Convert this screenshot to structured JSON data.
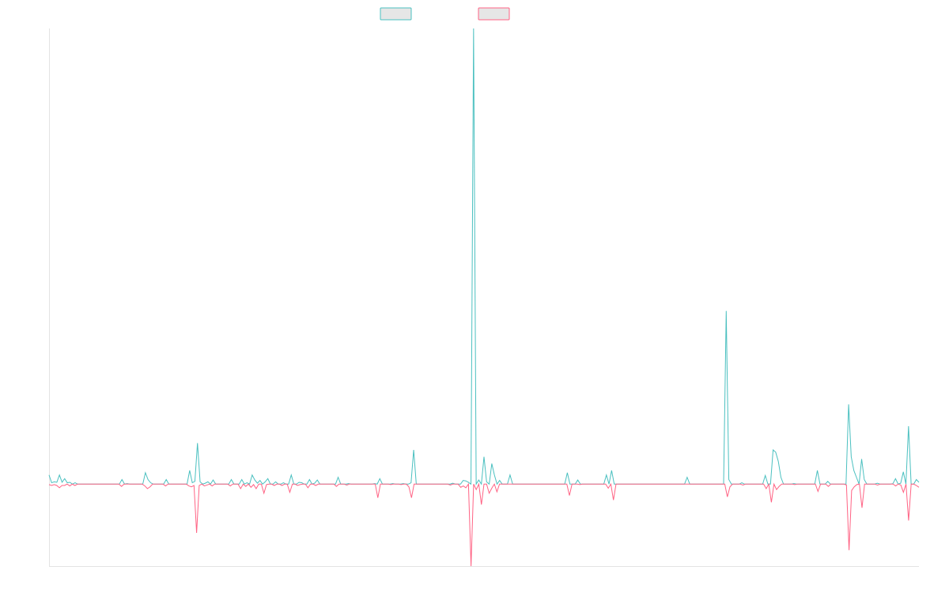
{
  "chart_data": {
    "type": "line",
    "title": "",
    "xlabel": "",
    "ylabel": "",
    "ylim": [
      -0.18,
      1.0
    ],
    "legend": {
      "placement": "top-center"
    },
    "grid": false,
    "series": [
      {
        "color": "#4bc0c0",
        "values": [
          0.02,
          0.003,
          0.005,
          0.004,
          0.02,
          0.004,
          0.012,
          0.003,
          0.004,
          0,
          0.003,
          0,
          0,
          0,
          0,
          0,
          0,
          0,
          0,
          0,
          0,
          0,
          0,
          0,
          0,
          0,
          0,
          0,
          0.01,
          0,
          0.001,
          0,
          0,
          0,
          0,
          0,
          0,
          0.025,
          0.01,
          0.003,
          0,
          0,
          0,
          0,
          0,
          0.01,
          0,
          0,
          0,
          0,
          0,
          0,
          0,
          0,
          0.03,
          0.003,
          0.006,
          0.09,
          0.005,
          0,
          0.002,
          0.005,
          0,
          0.009,
          0,
          0,
          0,
          0,
          0,
          0,
          0.01,
          0,
          0,
          0,
          0.01,
          0,
          0.003,
          0,
          0.02,
          0.009,
          0.002,
          0.008,
          0,
          0.005,
          0.012,
          0,
          0,
          0.005,
          0,
          0,
          0.003,
          0,
          0,
          0.02,
          0,
          0,
          0.004,
          0.003,
          0,
          0,
          0.01,
          0,
          0.002,
          0.009,
          0,
          0,
          0,
          0,
          0,
          0,
          0,
          0.015,
          0,
          0,
          0,
          0.001,
          0,
          0,
          0,
          0,
          0,
          0,
          0,
          0,
          0,
          0.001,
          0,
          0.012,
          0,
          0,
          0,
          0,
          0.001,
          0,
          0,
          0,
          0.001,
          0,
          0,
          0.003,
          0.075,
          0,
          0,
          0,
          0,
          0,
          0,
          0,
          0,
          0,
          0,
          0,
          0,
          0,
          0,
          0.002,
          0,
          0,
          0,
          0.008,
          0.007,
          0.004,
          0,
          1.0,
          0,
          0.009,
          0,
          0.06,
          0.005,
          0,
          0.045,
          0.02,
          0,
          0.008,
          0,
          0,
          0,
          0.02,
          0,
          0,
          0,
          0,
          0,
          0,
          0,
          0,
          0,
          0,
          0,
          0,
          0,
          0,
          0,
          0,
          0,
          0,
          0,
          0,
          0,
          0.025,
          0,
          0,
          0,
          0.009,
          0,
          0,
          0,
          0,
          0,
          0,
          0,
          0,
          0,
          0,
          0.02,
          0,
          0.03,
          0,
          0,
          0,
          0,
          0,
          0,
          0,
          0,
          0,
          0,
          0,
          0,
          0,
          0,
          0,
          0,
          0,
          0,
          0,
          0,
          0,
          0,
          0,
          0,
          0,
          0,
          0,
          0,
          0.015,
          0,
          0,
          0,
          0,
          0,
          0,
          0,
          0,
          0,
          0,
          0,
          0,
          0,
          0,
          0.38,
          0.01,
          0,
          0,
          0,
          0,
          0.003,
          0,
          0,
          0,
          0,
          0,
          0,
          0,
          0,
          0.019,
          0,
          0,
          0.075,
          0.07,
          0.05,
          0.015,
          0,
          0,
          0,
          0,
          0.001,
          0,
          0,
          0,
          0,
          0,
          0,
          0,
          0,
          0.03,
          0,
          0,
          0,
          0.006,
          0,
          0,
          0,
          0,
          0,
          0,
          0,
          0.175,
          0.06,
          0.03,
          0.015,
          0,
          0.055,
          0.01,
          0,
          0,
          0,
          0,
          0.002,
          0,
          0,
          0,
          0,
          0,
          0.001,
          0.012,
          0,
          0.002,
          0.027,
          0,
          0.127,
          0,
          0,
          0.01,
          0.004
        ]
      },
      {
        "color": "#ff6384",
        "values": [
          -0.001,
          -0.003,
          -0.001,
          -0.003,
          -0.008,
          -0.003,
          -0.003,
          0,
          -0.004,
          0,
          -0.003,
          0,
          0,
          0,
          0,
          0,
          0,
          0,
          0,
          0,
          0,
          0,
          0,
          0,
          0,
          0,
          0,
          0,
          -0.005,
          0,
          0,
          0,
          0,
          0,
          0,
          0,
          0,
          -0.004,
          -0.01,
          -0.006,
          0,
          0,
          0,
          0,
          0,
          -0.004,
          0,
          0,
          0,
          0,
          0,
          0,
          0,
          0,
          -0.004,
          -0.006,
          -0.003,
          -0.107,
          -0.003,
          0,
          -0.004,
          -0.002,
          0,
          -0.004,
          0,
          0,
          0,
          0,
          0,
          0,
          -0.004,
          0,
          0,
          0,
          -0.01,
          0,
          -0.005,
          0,
          -0.007,
          -0.001,
          -0.01,
          0,
          0,
          -0.02,
          -0.001,
          0,
          0,
          -0.003,
          0,
          0,
          -0.003,
          0,
          0,
          -0.018,
          0,
          0,
          -0.003,
          -0.001,
          0,
          0,
          -0.008,
          0,
          0,
          -0.003,
          0,
          0,
          0,
          0,
          0,
          0,
          0,
          -0.005,
          0,
          0,
          0,
          -0.002,
          0,
          0,
          0,
          0,
          0,
          0,
          0,
          0,
          0,
          0,
          0,
          -0.03,
          0,
          0,
          0,
          0,
          -0.001,
          0,
          0,
          0,
          -0.001,
          0,
          0,
          -0.006,
          -0.03,
          0,
          0,
          0,
          0,
          0,
          0,
          0,
          0,
          0,
          0,
          0,
          0,
          0,
          0,
          -0.002,
          0,
          0,
          0,
          -0.007,
          -0.004,
          -0.008,
          0,
          -0.18,
          0,
          -0.012,
          0,
          -0.045,
          0,
          0,
          -0.02,
          -0.009,
          0,
          -0.017,
          0,
          0,
          0,
          0,
          0,
          0,
          0,
          0,
          0,
          0,
          0,
          0,
          0,
          0,
          0,
          0,
          0,
          0,
          0,
          0,
          0,
          0,
          0,
          0,
          0,
          0,
          0,
          -0.025,
          0,
          0,
          0,
          -0.001,
          0,
          0,
          0,
          0,
          0,
          0,
          0,
          0,
          0,
          0,
          -0.009,
          0,
          -0.035,
          0,
          0,
          0,
          0,
          0,
          0,
          0,
          0,
          0,
          0,
          0,
          0,
          0,
          0,
          0,
          0,
          0,
          0,
          0,
          0,
          0,
          0,
          0,
          0,
          0,
          0,
          0,
          0,
          0,
          0,
          0,
          0,
          0,
          0,
          0,
          0,
          0,
          0,
          0,
          0,
          0,
          0,
          0,
          -0.028,
          -0.006,
          0,
          0,
          0,
          0,
          -0.002,
          0,
          0,
          0,
          0,
          0,
          0,
          0,
          0,
          -0.01,
          0,
          -0.04,
          0,
          -0.012,
          -0.005,
          0,
          0,
          0,
          0,
          0,
          -0.001,
          0,
          0,
          0,
          0,
          0,
          0,
          0,
          0,
          -0.016,
          0,
          0,
          0,
          -0.005,
          0,
          0,
          0,
          0,
          0,
          0,
          -0.002,
          -0.145,
          -0.014,
          -0.006,
          -0.001,
          0,
          -0.052,
          0,
          0,
          0,
          0,
          0,
          -0.002,
          0,
          0,
          0,
          0,
          0,
          0,
          -0.004,
          0,
          -0.002,
          -0.018,
          0,
          -0.08,
          0,
          0,
          -0.003,
          -0.007
        ]
      }
    ]
  }
}
